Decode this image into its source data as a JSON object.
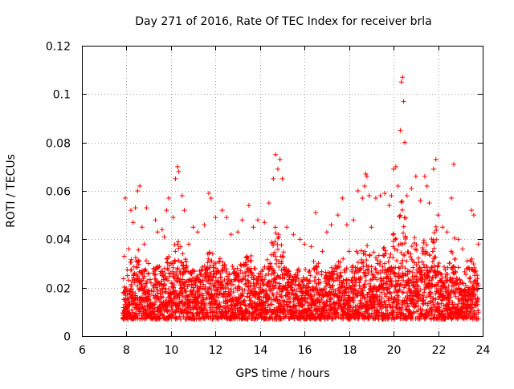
{
  "chart_data": {
    "type": "scatter",
    "title": "Day 271 of 2016, Rate Of TEC Index for receiver brla",
    "xlabel": "GPS time / hours",
    "ylabel": "ROTI / TECUs",
    "xlim": [
      6,
      24
    ],
    "ylim": [
      0,
      0.12
    ],
    "xticks": [
      6,
      8,
      10,
      12,
      14,
      16,
      18,
      20,
      22,
      24
    ],
    "xtick_labels": [
      "6",
      "8",
      "10",
      "12",
      "14",
      "16",
      "18",
      "20",
      "22",
      "24"
    ],
    "yticks": [
      0,
      0.02,
      0.04,
      0.06,
      0.08,
      0.1,
      0.12
    ],
    "ytick_labels": [
      "0",
      "0.02",
      "0.04",
      "0.06",
      "0.08",
      "0.1",
      "0.12"
    ],
    "grid": true,
    "legend": "none",
    "marker": "+",
    "color": "#ff0000",
    "series": [
      {
        "name": "ROTI",
        "points": [
          [
            7.85,
            0.018
          ],
          [
            7.9,
            0.033
          ],
          [
            7.95,
            0.057
          ],
          [
            8.05,
            0.025
          ],
          [
            8.1,
            0.036
          ],
          [
            8.2,
            0.052
          ],
          [
            8.3,
            0.047
          ],
          [
            8.4,
            0.053
          ],
          [
            8.5,
            0.06
          ],
          [
            8.6,
            0.062
          ],
          [
            8.7,
            0.045
          ],
          [
            8.8,
            0.038
          ],
          [
            8.9,
            0.053
          ],
          [
            9.0,
            0.03
          ],
          [
            9.1,
            0.022
          ],
          [
            9.3,
            0.048
          ],
          [
            9.4,
            0.043
          ],
          [
            9.6,
            0.044
          ],
          [
            9.7,
            0.041
          ],
          [
            9.8,
            0.052
          ],
          [
            9.9,
            0.057
          ],
          [
            10.0,
            0.03
          ],
          [
            10.1,
            0.049
          ],
          [
            10.2,
            0.065
          ],
          [
            10.3,
            0.07
          ],
          [
            10.35,
            0.068
          ],
          [
            10.5,
            0.058
          ],
          [
            10.6,
            0.052
          ],
          [
            10.8,
            0.038
          ],
          [
            11.0,
            0.045
          ],
          [
            11.2,
            0.043
          ],
          [
            11.5,
            0.046
          ],
          [
            11.7,
            0.059
          ],
          [
            11.8,
            0.057
          ],
          [
            12.0,
            0.049
          ],
          [
            12.3,
            0.052
          ],
          [
            12.5,
            0.049
          ],
          [
            12.7,
            0.042
          ],
          [
            13.0,
            0.043
          ],
          [
            13.2,
            0.048
          ],
          [
            13.5,
            0.054
          ],
          [
            13.7,
            0.045
          ],
          [
            13.9,
            0.048
          ],
          [
            14.2,
            0.047
          ],
          [
            14.4,
            0.055
          ],
          [
            14.6,
            0.065
          ],
          [
            14.7,
            0.075
          ],
          [
            14.8,
            0.069
          ],
          [
            14.9,
            0.073
          ],
          [
            15.0,
            0.065
          ],
          [
            15.2,
            0.045
          ],
          [
            15.5,
            0.042
          ],
          [
            15.8,
            0.04
          ],
          [
            16.0,
            0.038
          ],
          [
            16.3,
            0.037
          ],
          [
            16.5,
            0.051
          ],
          [
            16.8,
            0.035
          ],
          [
            17.0,
            0.043
          ],
          [
            17.2,
            0.046
          ],
          [
            17.5,
            0.05
          ],
          [
            17.7,
            0.057
          ],
          [
            17.9,
            0.046
          ],
          [
            18.0,
            0.035
          ],
          [
            18.2,
            0.048
          ],
          [
            18.4,
            0.06
          ],
          [
            18.6,
            0.057
          ],
          [
            18.7,
            0.062
          ],
          [
            18.75,
            0.067
          ],
          [
            18.8,
            0.066
          ],
          [
            18.9,
            0.058
          ],
          [
            19.0,
            0.045
          ],
          [
            19.2,
            0.057
          ],
          [
            19.4,
            0.058
          ],
          [
            19.6,
            0.059
          ],
          [
            19.8,
            0.054
          ],
          [
            19.9,
            0.058
          ],
          [
            20.0,
            0.069
          ],
          [
            20.1,
            0.07
          ],
          [
            20.2,
            0.062
          ],
          [
            20.3,
            0.085
          ],
          [
            20.35,
            0.105
          ],
          [
            20.4,
            0.107
          ],
          [
            20.45,
            0.097
          ],
          [
            20.5,
            0.08
          ],
          [
            20.6,
            0.058
          ],
          [
            20.8,
            0.061
          ],
          [
            21.0,
            0.066
          ],
          [
            21.2,
            0.056
          ],
          [
            21.4,
            0.066
          ],
          [
            21.5,
            0.062
          ],
          [
            21.6,
            0.055
          ],
          [
            21.8,
            0.069
          ],
          [
            21.9,
            0.073
          ],
          [
            22.0,
            0.05
          ],
          [
            22.2,
            0.045
          ],
          [
            22.4,
            0.043
          ],
          [
            22.6,
            0.057
          ],
          [
            22.7,
            0.071
          ],
          [
            22.9,
            0.04
          ],
          [
            23.1,
            0.036
          ],
          [
            23.3,
            0.031
          ],
          [
            23.5,
            0.052
          ],
          [
            23.6,
            0.05
          ],
          [
            23.8,
            0.038
          ]
        ]
      }
    ]
  }
}
